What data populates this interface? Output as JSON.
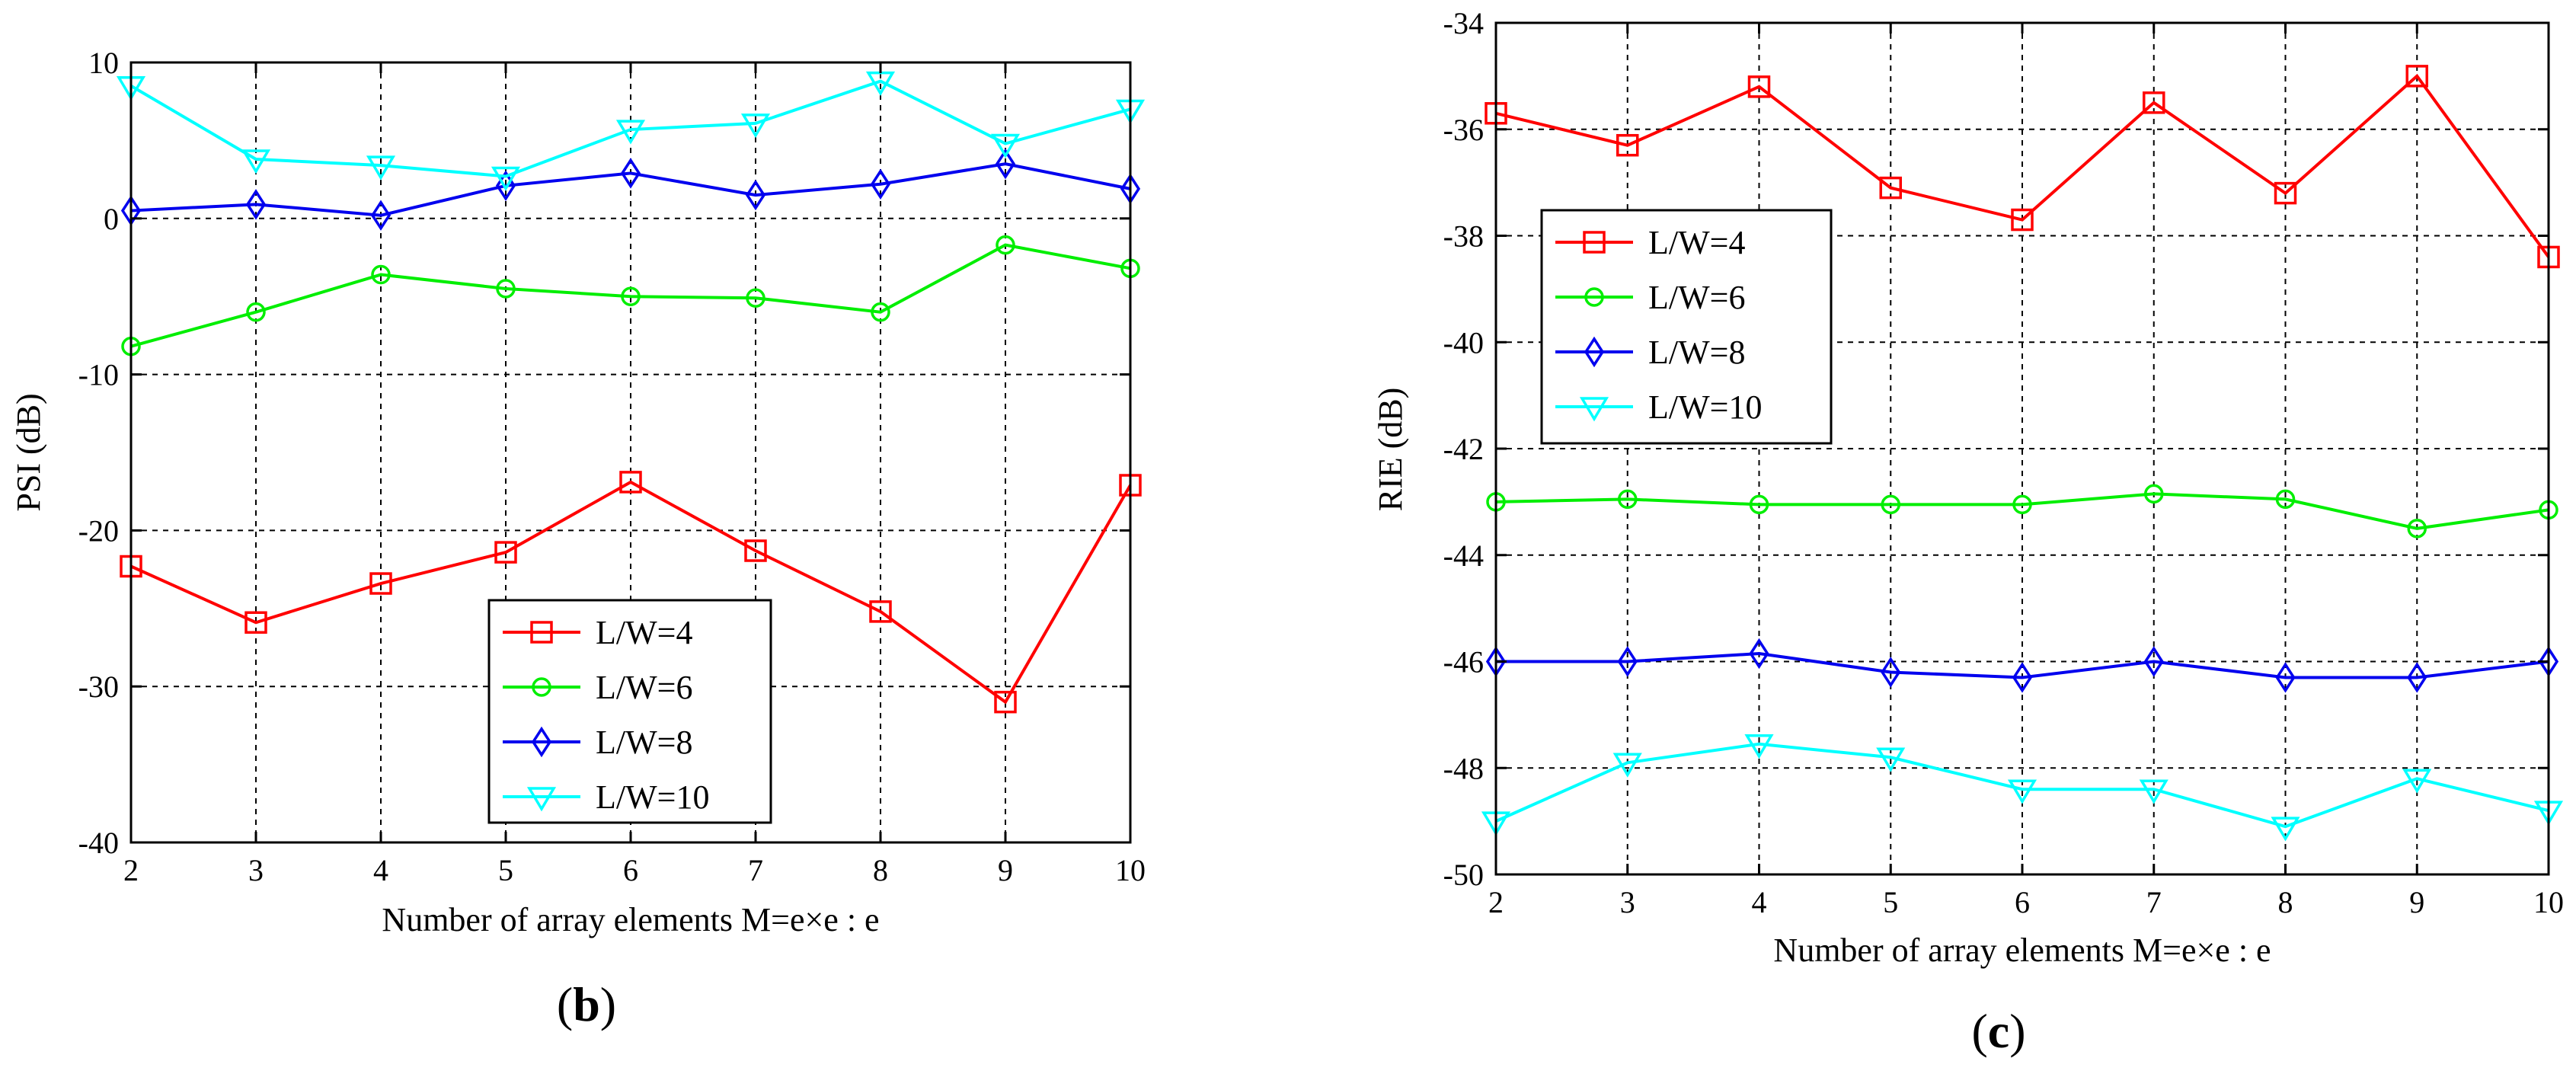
{
  "chart_data": [
    {
      "type": "line",
      "id": "b",
      "caption": {
        "open": "(",
        "letter": "b",
        "close": ")"
      },
      "xlabel": "Number of array elements M=e×e : e",
      "ylabel": "PSI (dB)",
      "x": [
        2,
        3,
        4,
        5,
        6,
        7,
        8,
        9,
        10
      ],
      "xlim": [
        2,
        10
      ],
      "ylim": [
        -40,
        10
      ],
      "yticks": [
        10,
        0,
        -10,
        -20,
        -30,
        -40
      ],
      "grid": true,
      "legend_position": "lower-right",
      "series": [
        {
          "name": "L/W=4",
          "color": "#ff0000",
          "marker": "square",
          "values": [
            -22.3,
            -25.9,
            -23.4,
            -21.4,
            -16.9,
            -21.3,
            -25.2,
            -31.0,
            -17.1
          ]
        },
        {
          "name": "L/W=6",
          "color": "#00ee00",
          "marker": "circle",
          "values": [
            -8.2,
            -6.0,
            -3.6,
            -4.5,
            -5.0,
            -5.1,
            -6.0,
            -1.7,
            -3.2
          ]
        },
        {
          "name": "L/W=8",
          "color": "#0000ee",
          "marker": "diamond",
          "values": [
            0.5,
            0.9,
            0.2,
            2.1,
            2.9,
            1.5,
            2.2,
            3.5,
            1.9
          ]
        },
        {
          "name": "L/W=10",
          "color": "#00ffff",
          "marker": "triangle-down",
          "values": [
            8.5,
            3.8,
            3.4,
            2.7,
            5.7,
            6.1,
            8.8,
            4.8,
            7.0
          ]
        }
      ]
    },
    {
      "type": "line",
      "id": "c",
      "caption": {
        "open": "(",
        "letter": "c",
        "close": ")"
      },
      "xlabel": "Number of array elements M=e×e : e",
      "ylabel": "RIE (dB)",
      "x": [
        2,
        3,
        4,
        5,
        6,
        7,
        8,
        9,
        10
      ],
      "xlim": [
        2,
        10
      ],
      "ylim": [
        -50,
        -34
      ],
      "yticks": [
        -34,
        -36,
        -38,
        -40,
        -42,
        -44,
        -46,
        -48,
        -50
      ],
      "grid": true,
      "legend_position": "upper-left",
      "series": [
        {
          "name": "L/W=4",
          "color": "#ff0000",
          "marker": "square",
          "values": [
            -35.7,
            -36.3,
            -35.2,
            -37.1,
            -37.7,
            -35.5,
            -37.2,
            -35.0,
            -38.4
          ]
        },
        {
          "name": "L/W=6",
          "color": "#00ee00",
          "marker": "circle",
          "values": [
            -43.0,
            -42.95,
            -43.05,
            -43.05,
            -43.05,
            -42.85,
            -42.95,
            -43.5,
            -43.15
          ]
        },
        {
          "name": "L/W=8",
          "color": "#0000ee",
          "marker": "diamond",
          "values": [
            -46.0,
            -46.0,
            -45.85,
            -46.2,
            -46.3,
            -46.0,
            -46.3,
            -46.3,
            -46.0
          ]
        },
        {
          "name": "L/W=10",
          "color": "#00ffff",
          "marker": "triangle-down",
          "values": [
            -49.0,
            -47.9,
            -47.55,
            -47.8,
            -48.4,
            -48.4,
            -49.1,
            -48.2,
            -48.8
          ]
        }
      ]
    }
  ]
}
